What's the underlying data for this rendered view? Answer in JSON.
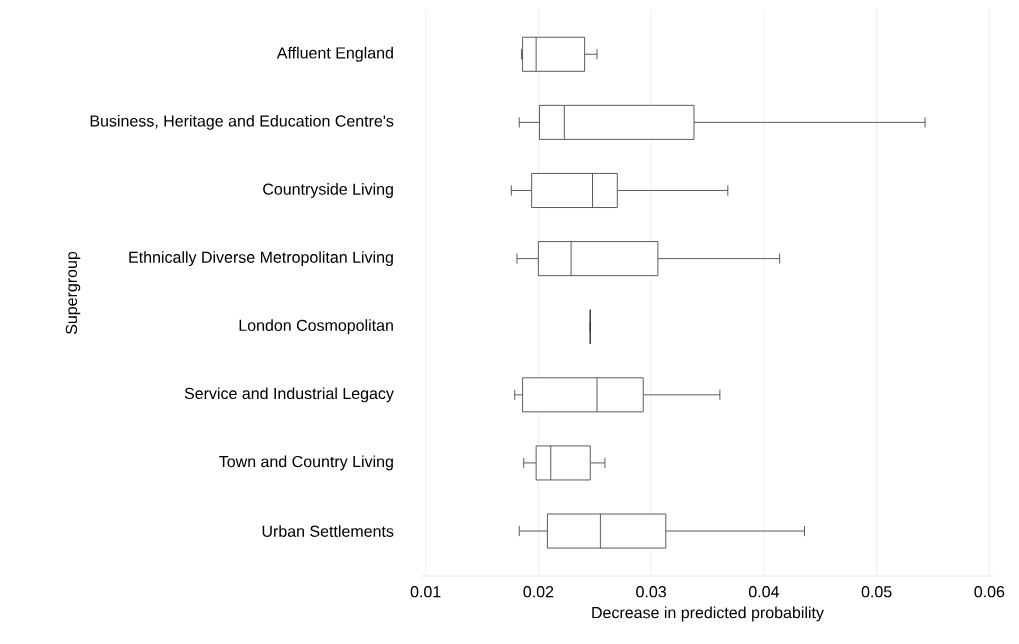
{
  "chart_data": {
    "type": "box",
    "orientation": "horizontal",
    "xlabel": "Decrease in predicted probability",
    "ylabel": "Supergroup",
    "categories": [
      "Affluent England",
      "Business, Heritage and Education Centre's",
      "Countryside Living",
      "Ethnically Diverse Metropolitan Living",
      "London Cosmopolitan",
      "Service and Industrial Legacy",
      "Town and Country Living",
      "Urban Settlements"
    ],
    "boxes": [
      {
        "low": 0.0185,
        "q1": 0.0186,
        "median": 0.0198,
        "q3": 0.0241,
        "high": 0.0252
      },
      {
        "low": 0.0183,
        "q1": 0.0201,
        "median": 0.0223,
        "q3": 0.0338,
        "high": 0.0543
      },
      {
        "low": 0.0176,
        "q1": 0.0194,
        "median": 0.0248,
        "q3": 0.027,
        "high": 0.0368
      },
      {
        "low": 0.0181,
        "q1": 0.02,
        "median": 0.0229,
        "q3": 0.0306,
        "high": 0.0414
      },
      {
        "low": 0.0246,
        "q1": 0.0246,
        "median": 0.0246,
        "q3": 0.0246,
        "high": 0.0246
      },
      {
        "low": 0.0179,
        "q1": 0.0186,
        "median": 0.0252,
        "q3": 0.0293,
        "high": 0.0361
      },
      {
        "low": 0.0187,
        "q1": 0.0198,
        "median": 0.0211,
        "q3": 0.0246,
        "high": 0.0259
      },
      {
        "low": 0.0183,
        "q1": 0.0208,
        "median": 0.0255,
        "q3": 0.0313,
        "high": 0.0436
      }
    ],
    "xlim": [
      0.0095,
      0.0605
    ],
    "xticks": [
      0.01,
      0.02,
      0.03,
      0.04,
      0.05,
      0.06
    ],
    "grid": "x"
  }
}
